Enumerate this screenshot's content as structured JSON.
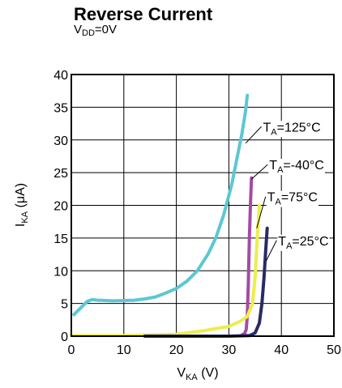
{
  "chart_data": {
    "type": "line",
    "title": "Reverse Current",
    "subtitle": {
      "main": "V",
      "sub": "DD",
      "rest": "=0V"
    },
    "xlabel": {
      "main": "V",
      "sub": "KA",
      "rest": " (V)"
    },
    "ylabel": {
      "main": "I",
      "sub": "KA",
      "rest": " (μA)"
    },
    "xlim": [
      0,
      50
    ],
    "ylim": [
      0,
      40
    ],
    "xticks": [
      0,
      10,
      20,
      30,
      40,
      50
    ],
    "yticks": [
      0,
      5,
      10,
      15,
      20,
      25,
      30,
      35,
      40
    ],
    "grid": true,
    "series": [
      {
        "name": "T_A=125°C",
        "label_main": "T",
        "label_sub": "A",
        "label_rest": "=125°C",
        "color": "#5bc8d2",
        "points": [
          [
            0.5,
            3.3
          ],
          [
            2,
            4.5
          ],
          [
            3,
            5.3
          ],
          [
            4,
            5.6
          ],
          [
            5,
            5.5
          ],
          [
            8,
            5.4
          ],
          [
            12,
            5.5
          ],
          [
            14,
            5.7
          ],
          [
            16,
            6.0
          ],
          [
            18,
            6.6
          ],
          [
            20,
            7.3
          ],
          [
            22,
            8.4
          ],
          [
            24,
            10.0
          ],
          [
            26,
            12.5
          ],
          [
            27.5,
            15.0
          ],
          [
            29,
            18.5
          ],
          [
            30.5,
            23.0
          ],
          [
            31.5,
            27.0
          ],
          [
            32.5,
            31.0
          ],
          [
            33.2,
            34.5
          ],
          [
            33.5,
            36.8
          ]
        ]
      },
      {
        "name": "T_A=-40°C",
        "label_main": "T",
        "label_sub": "A",
        "label_rest": "=-40°C",
        "color": "#a54ba5",
        "points": [
          [
            32.5,
            0.2
          ],
          [
            33.0,
            0.4
          ],
          [
            33.3,
            1.0
          ],
          [
            33.5,
            3.0
          ],
          [
            33.7,
            8.0
          ],
          [
            33.9,
            15.0
          ],
          [
            34.1,
            20.0
          ],
          [
            34.3,
            24.2
          ]
        ]
      },
      {
        "name": "T_A=75°C",
        "label_main": "T",
        "label_sub": "A",
        "label_rest": "=75°C",
        "color": "#eded4a",
        "points": [
          [
            0,
            0.1
          ],
          [
            10,
            0.1
          ],
          [
            15,
            0.2
          ],
          [
            20,
            0.3
          ],
          [
            25,
            0.8
          ],
          [
            30,
            1.5
          ],
          [
            32,
            2.2
          ],
          [
            33.5,
            3.0
          ],
          [
            34.5,
            5.0
          ],
          [
            35.0,
            9.0
          ],
          [
            35.4,
            15.0
          ],
          [
            35.8,
            20.0
          ]
        ]
      },
      {
        "name": "T_A=25°C",
        "label_main": "T",
        "label_sub": "A",
        "label_rest": "=25°C",
        "color": "#2a2a66",
        "points": [
          [
            14,
            0.0
          ],
          [
            20,
            0.0
          ],
          [
            25,
            0.0
          ],
          [
            30,
            0.0
          ],
          [
            34,
            0.1
          ],
          [
            35,
            0.5
          ],
          [
            35.8,
            2.0
          ],
          [
            36.3,
            5.0
          ],
          [
            36.7,
            9.0
          ],
          [
            37.0,
            13.0
          ],
          [
            37.3,
            16.5
          ]
        ]
      }
    ]
  }
}
